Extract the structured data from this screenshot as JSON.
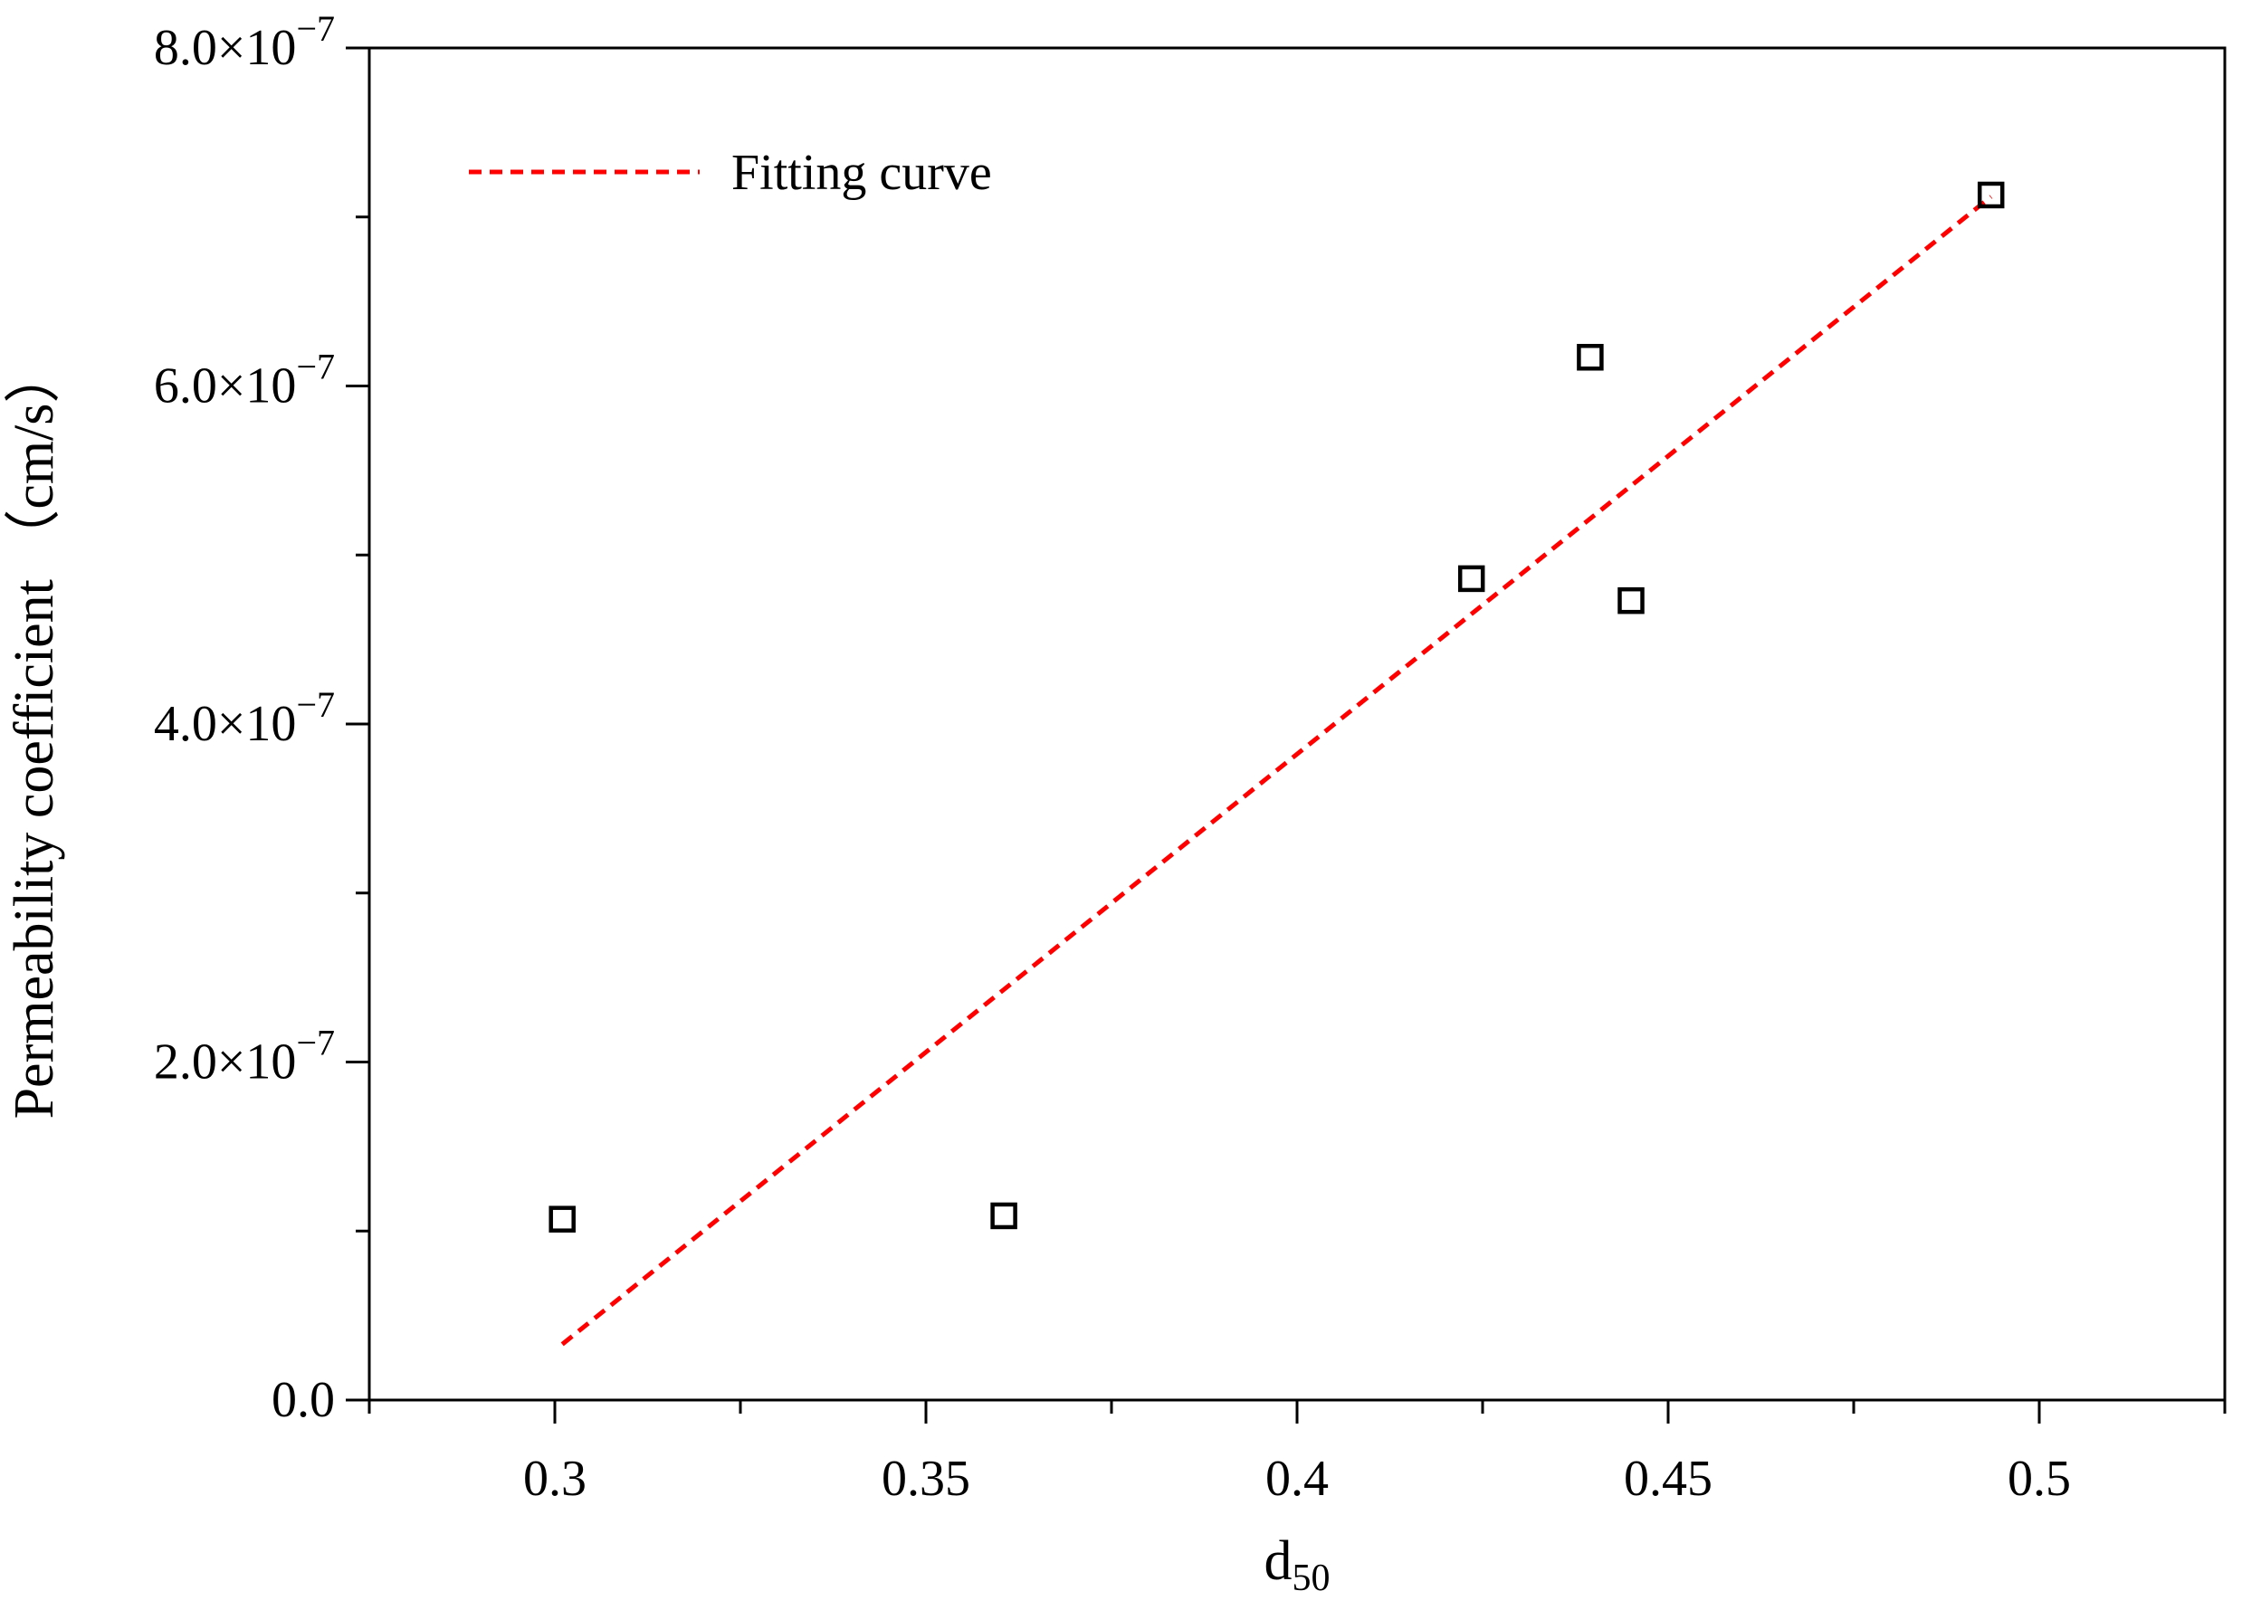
{
  "chart_data": {
    "type": "scatter",
    "xlabel": "d",
    "xlabel_subscript": "50",
    "ylabel": "Permeability coefficient （cm/s）",
    "xlim": [
      0.275,
      0.525
    ],
    "ylim": [
      0.0,
      8e-07
    ],
    "x_ticks": [
      0.3,
      0.35,
      0.4,
      0.45,
      0.5
    ],
    "x_tick_labels": [
      "0.3",
      "0.35",
      "0.4",
      "0.45",
      "0.5"
    ],
    "x_minor_ticks": [
      0.275,
      0.325,
      0.375,
      0.425,
      0.475,
      0.525
    ],
    "y_ticks": [
      0.0,
      2e-07,
      4e-07,
      6e-07,
      8e-07
    ],
    "y_tick_labels": [
      {
        "mantissa": "0.0",
        "exponent": ""
      },
      {
        "mantissa": "2.0×10",
        "exponent": "−7"
      },
      {
        "mantissa": "4.0×10",
        "exponent": "−7"
      },
      {
        "mantissa": "6.0×10",
        "exponent": "−7"
      },
      {
        "mantissa": "8.0×10",
        "exponent": "−7"
      }
    ],
    "y_minor_ticks": [
      1e-07,
      3e-07,
      5e-07,
      7e-07
    ],
    "grid": false,
    "series": [
      {
        "type": "scatter",
        "marker": "square-open",
        "color": "#000000",
        "points": [
          {
            "x": 0.301,
            "y": 1.07e-07
          },
          {
            "x": 0.3605,
            "y": 1.09e-07
          },
          {
            "x": 0.4235,
            "y": 4.86e-07
          },
          {
            "x": 0.4395,
            "y": 6.17e-07
          },
          {
            "x": 0.445,
            "y": 4.73e-07
          },
          {
            "x": 0.4935,
            "y": 7.13e-07
          }
        ]
      },
      {
        "name": "Fitting curve",
        "type": "line",
        "style": "dashed",
        "color": "#ff0000",
        "points": [
          {
            "x": 0.301,
            "y": 3.3e-08
          },
          {
            "x": 0.4935,
            "y": 7.12e-07
          }
        ]
      }
    ],
    "legend": {
      "placement": "top-left",
      "entries": [
        "Fitting curve"
      ]
    }
  }
}
